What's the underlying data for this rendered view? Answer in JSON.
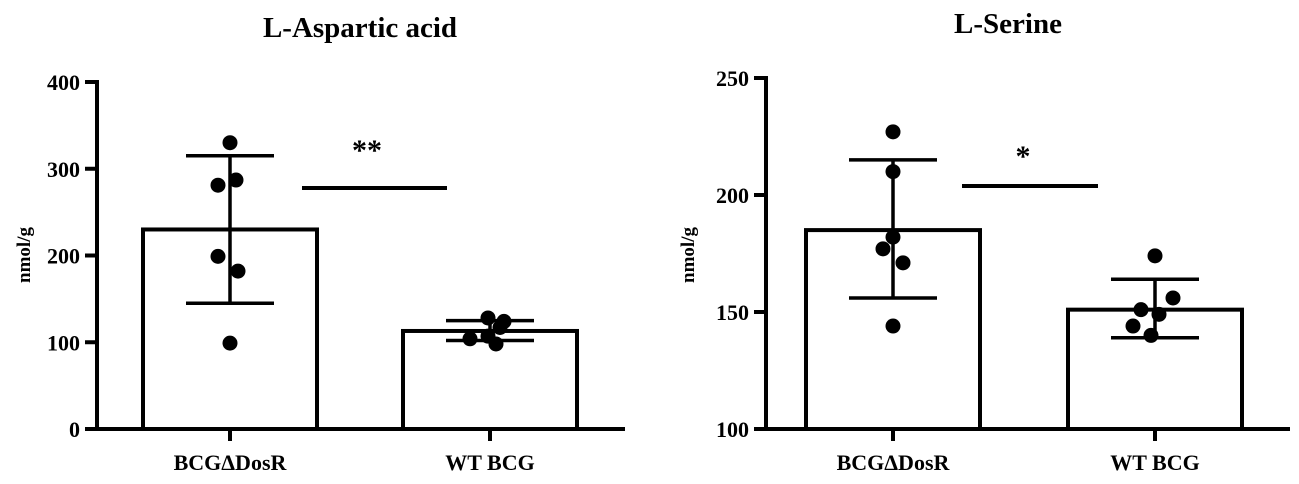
{
  "chart_data": [
    {
      "type": "bar",
      "title": "L-Aspartic acid",
      "ylabel": "nmol/g",
      "xlabel": "",
      "ylim": [
        0,
        400
      ],
      "yticks": [
        0,
        100,
        200,
        300,
        400
      ],
      "categories": [
        "BCGΔDosR",
        "WT BCG"
      ],
      "values": [
        230,
        113
      ],
      "error": [
        {
          "low": 145,
          "high": 315
        },
        {
          "low": 102,
          "high": 125
        }
      ],
      "points": [
        [
          330,
          287,
          281,
          199,
          182,
          99
        ],
        [
          128,
          124,
          117,
          107,
          104,
          98
        ]
      ],
      "significance": "**",
      "grid": false
    },
    {
      "type": "bar",
      "title": "L-Serine",
      "ylabel": "nmol/g",
      "xlabel": "",
      "ylim": [
        100,
        250
      ],
      "yticks": [
        100,
        150,
        200,
        250
      ],
      "categories": [
        "BCGΔDosR",
        "WT BCG"
      ],
      "values": [
        185,
        151
      ],
      "error": [
        {
          "low": 156,
          "high": 215
        },
        {
          "low": 139,
          "high": 164
        }
      ],
      "points": [
        [
          227,
          210,
          182,
          177,
          171,
          144
        ],
        [
          174,
          156,
          151,
          149,
          144,
          140
        ]
      ],
      "significance": "*",
      "grid": false
    }
  ]
}
